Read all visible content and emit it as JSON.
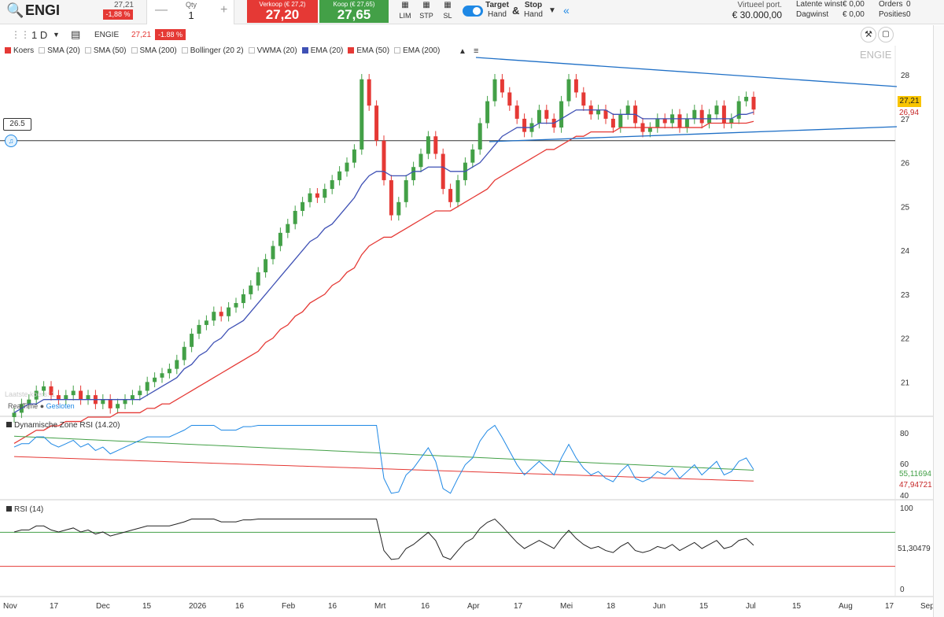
{
  "topbar": {
    "symbol": "ENGI",
    "price": "27,21",
    "change": "-1,88 %",
    "qty_label": "Qty",
    "qty_value": "1",
    "sell_label": "Verkoop (€ 27,2)",
    "sell_value": "27,20",
    "buy_label": "Koop (€ 27,65)",
    "buy_value": "27,65",
    "order_types": [
      "LIM",
      "STP",
      "SL"
    ],
    "target_line1": "Target",
    "target_line2": "Hand",
    "amp": "&",
    "stop_line1": "Stop",
    "stop_line2": "Hand",
    "portfolio_label": "Virtueel port.",
    "portfolio_value": "€ 30.000,00",
    "latent_label": "Latente winst",
    "latent_value": "€ 0,00",
    "daygain_label": "Dagwinst",
    "daygain_value": "€ 0,00",
    "orders_label": "Orders",
    "orders_value": "0",
    "positions_label": "Posities",
    "positions_value": "0"
  },
  "chart_toolbar": {
    "interval": "1 D",
    "symbol": "ENGIE",
    "price": "27,21",
    "change": "-1.88 %",
    "watermark": "ENGIE"
  },
  "indicators": [
    {
      "label": "Koers",
      "color": "#e53935"
    },
    {
      "label": "SMA (20)",
      "color": ""
    },
    {
      "label": "SMA (50)",
      "color": ""
    },
    {
      "label": "SMA (200)",
      "color": ""
    },
    {
      "label": "Bollinger (20 2)",
      "color": ""
    },
    {
      "label": "VWMA (20)",
      "color": ""
    },
    {
      "label": "EMA (20)",
      "color": "#3f51b5"
    },
    {
      "label": "EMA (50)",
      "color": "#e53935"
    },
    {
      "label": "EMA (200)",
      "color": ""
    }
  ],
  "main_chart": {
    "hline_label": "26.5",
    "last_price_tag": "27,21",
    "ema50_tag": "26,94",
    "realtime_text": "RealTime",
    "closed_text": "Gesloten",
    "last_quote": "Laatste koers: 1"
  },
  "rsi_zone": {
    "title": "Dynamische Zone RSI (14.20)",
    "value_upper": "55,11694",
    "value_lower": "47,94721",
    "ticks": [
      "80",
      "60",
      "40"
    ]
  },
  "rsi": {
    "title": "RSI (14)",
    "value": "51,30479",
    "ticks": [
      "100",
      "50",
      "0"
    ]
  },
  "chart_data": {
    "type": "candlestick",
    "x_ticks": [
      "Nov",
      "17",
      "Dec",
      "15",
      "2026",
      "16",
      "Feb",
      "16",
      "Mrt",
      "16",
      "Apr",
      "17",
      "Mei",
      "18",
      "Jun",
      "15",
      "Jul",
      "15",
      "Aug",
      "17",
      "Sep"
    ],
    "y_ticks": [
      28,
      27,
      26,
      25,
      24,
      23,
      22,
      21
    ],
    "ylim": [
      20.2,
      28.2
    ],
    "closes": [
      20.3,
      20.5,
      20.6,
      20.8,
      20.9,
      20.7,
      20.6,
      20.7,
      20.8,
      20.6,
      20.7,
      20.5,
      20.6,
      20.4,
      20.5,
      20.6,
      20.7,
      20.8,
      21.0,
      21.1,
      21.2,
      21.3,
      21.5,
      21.8,
      22.1,
      22.3,
      22.4,
      22.6,
      22.5,
      22.7,
      22.8,
      23.0,
      23.2,
      23.5,
      23.8,
      24.1,
      24.4,
      24.6,
      24.9,
      25.1,
      25.3,
      25.2,
      25.4,
      25.6,
      25.8,
      26.0,
      26.3,
      27.9,
      27.3,
      26.5,
      25.6,
      24.8,
      25.1,
      25.6,
      25.9,
      26.2,
      26.6,
      26.2,
      25.4,
      25.1,
      25.6,
      26.0,
      26.3,
      26.9,
      27.4,
      27.9,
      27.6,
      27.3,
      27.0,
      26.7,
      26.9,
      27.2,
      27.0,
      26.8,
      27.4,
      27.9,
      27.6,
      27.3,
      27.1,
      27.2,
      27.0,
      26.8,
      27.1,
      27.3,
      26.9,
      26.7,
      26.8,
      27.0,
      26.9,
      27.1,
      26.8,
      27.0,
      27.2,
      26.9,
      27.1,
      27.3,
      26.9,
      27.0,
      27.4,
      27.5,
      27.21
    ],
    "ema20": [
      20.3,
      20.4,
      20.5,
      20.5,
      20.6,
      20.6,
      20.6,
      20.6,
      20.6,
      20.6,
      20.6,
      20.6,
      20.6,
      20.6,
      20.6,
      20.6,
      20.6,
      20.6,
      20.7,
      20.8,
      20.9,
      21.0,
      21.1,
      21.3,
      21.4,
      21.6,
      21.7,
      21.9,
      22.0,
      22.2,
      22.3,
      22.4,
      22.6,
      22.8,
      23.0,
      23.2,
      23.4,
      23.6,
      23.8,
      24.0,
      24.2,
      24.3,
      24.5,
      24.6,
      24.8,
      25.0,
      25.2,
      25.5,
      25.7,
      25.8,
      25.8,
      25.7,
      25.7,
      25.7,
      25.8,
      25.8,
      25.9,
      25.9,
      25.9,
      25.8,
      25.8,
      25.8,
      25.9,
      26.0,
      26.2,
      26.4,
      26.6,
      26.7,
      26.8,
      26.8,
      26.8,
      26.9,
      26.9,
      26.9,
      27.0,
      27.1,
      27.2,
      27.2,
      27.2,
      27.2,
      27.2,
      27.1,
      27.1,
      27.1,
      27.1,
      27.0,
      27.0,
      27.0,
      27.0,
      27.0,
      27.0,
      27.0,
      27.0,
      27.0,
      27.0,
      27.0,
      27.0,
      27.0,
      27.1,
      27.1,
      27.15
    ],
    "ema50": [
      19.6,
      19.7,
      19.8,
      19.9,
      19.9,
      20.0,
      20.0,
      20.1,
      20.1,
      20.1,
      20.2,
      20.2,
      20.2,
      20.2,
      20.3,
      20.3,
      20.3,
      20.3,
      20.4,
      20.4,
      20.5,
      20.5,
      20.6,
      20.7,
      20.8,
      20.9,
      21.0,
      21.1,
      21.2,
      21.3,
      21.4,
      21.5,
      21.6,
      21.7,
      21.9,
      22.0,
      22.2,
      22.3,
      22.5,
      22.6,
      22.8,
      22.9,
      23.0,
      23.2,
      23.3,
      23.5,
      23.6,
      23.9,
      24.1,
      24.2,
      24.3,
      24.3,
      24.4,
      24.5,
      24.6,
      24.7,
      24.8,
      24.9,
      24.9,
      24.9,
      25.0,
      25.1,
      25.2,
      25.3,
      25.4,
      25.6,
      25.7,
      25.8,
      25.9,
      26.0,
      26.1,
      26.2,
      26.3,
      26.3,
      26.4,
      26.5,
      26.6,
      26.6,
      26.7,
      26.7,
      26.7,
      26.7,
      26.8,
      26.8,
      26.8,
      26.8,
      26.8,
      26.8,
      26.8,
      26.8,
      26.8,
      26.8,
      26.8,
      26.8,
      26.9,
      26.9,
      26.9,
      26.9,
      26.9,
      26.9,
      26.94
    ],
    "hline": 26.5
  },
  "colors": {
    "up": "#43a047",
    "down": "#e53935",
    "ema20": "#3f51b5",
    "ema50": "#e53935",
    "trend": "#1e6fc6"
  }
}
